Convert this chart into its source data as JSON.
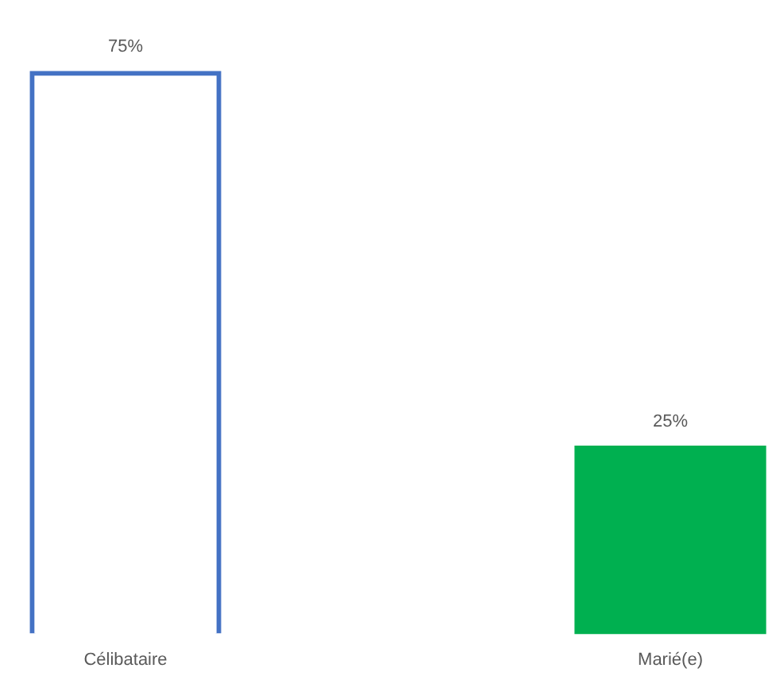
{
  "chart_data": {
    "type": "bar",
    "categories": [
      "Célibataire",
      "Marié(e)"
    ],
    "values": [
      75,
      25
    ],
    "colors": [
      "#4472c4",
      "#00b050"
    ],
    "value_labels": [
      "75%",
      "25%"
    ],
    "grid": false,
    "legend": false
  }
}
